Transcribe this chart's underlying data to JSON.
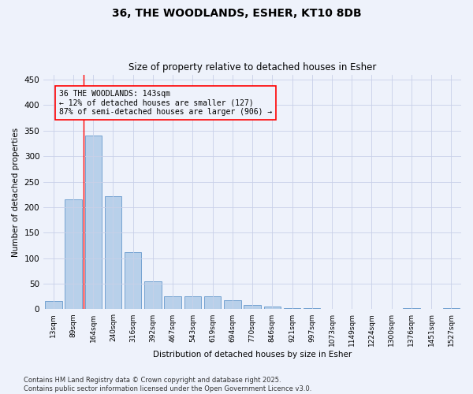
{
  "title_line1": "36, THE WOODLANDS, ESHER, KT10 8DB",
  "title_line2": "Size of property relative to detached houses in Esher",
  "xlabel": "Distribution of detached houses by size in Esher",
  "ylabel": "Number of detached properties",
  "categories": [
    "13sqm",
    "89sqm",
    "164sqm",
    "240sqm",
    "316sqm",
    "392sqm",
    "467sqm",
    "543sqm",
    "619sqm",
    "694sqm",
    "770sqm",
    "846sqm",
    "921sqm",
    "997sqm",
    "1073sqm",
    "1149sqm",
    "1224sqm",
    "1300sqm",
    "1376sqm",
    "1451sqm",
    "1527sqm"
  ],
  "values": [
    16,
    215,
    340,
    221,
    112,
    54,
    26,
    25,
    25,
    18,
    8,
    5,
    2,
    2,
    1,
    0,
    0,
    0,
    3,
    0,
    3
  ],
  "bar_color": "#b8d0ea",
  "bar_edge_color": "#6699cc",
  "red_line_x": 1.5,
  "annotation_text": "36 THE WOODLANDS: 143sqm\n← 12% of detached houses are smaller (127)\n87% of semi-detached houses are larger (906) →",
  "ylim": [
    0,
    460
  ],
  "yticks": [
    0,
    50,
    100,
    150,
    200,
    250,
    300,
    350,
    400,
    450
  ],
  "footer_line1": "Contains HM Land Registry data © Crown copyright and database right 2025.",
  "footer_line2": "Contains public sector information licensed under the Open Government Licence v3.0.",
  "background_color": "#eef2fb",
  "grid_color": "#c8d0e8"
}
